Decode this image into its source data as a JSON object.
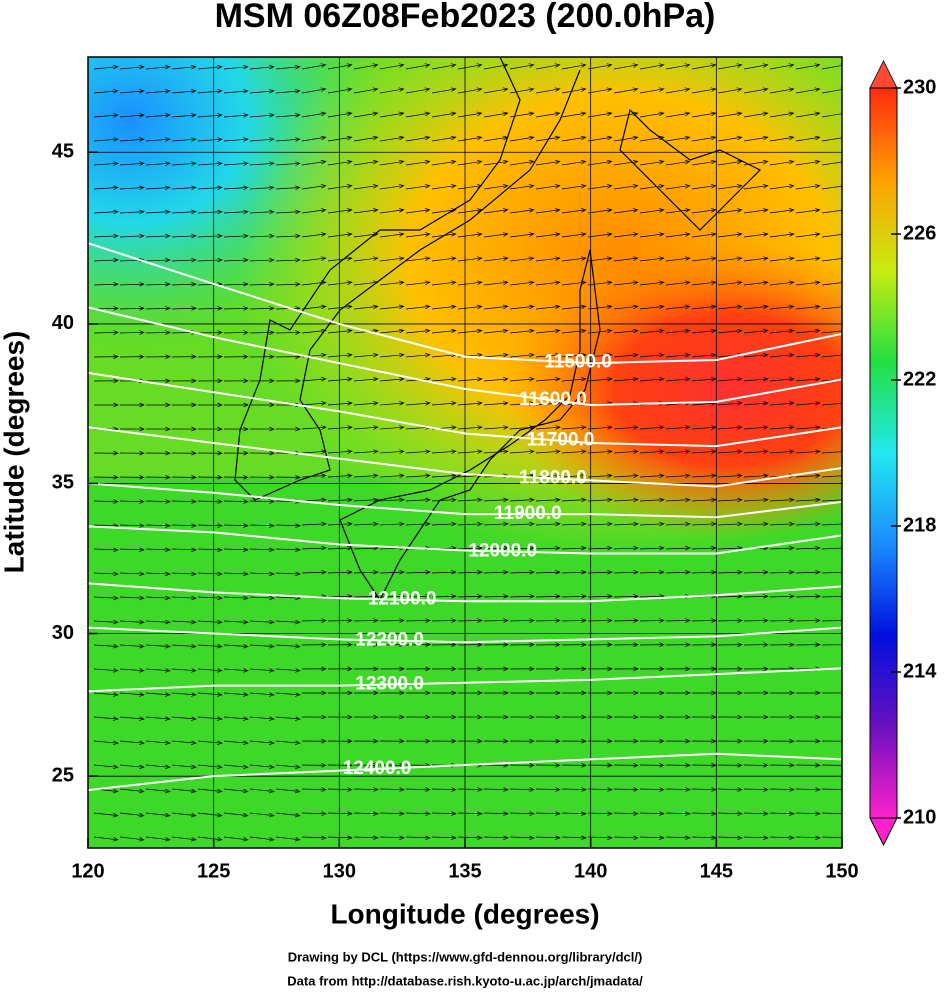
{
  "chart_data": {
    "type": "map",
    "title": "MSM 06Z08Feb2023 (200.0hPa)",
    "x_label": "Longitude (degrees)",
    "y_label": "Latitude  (degrees)",
    "projection": "mercator",
    "xlim": [
      120,
      150
    ],
    "ylim": [
      22.4,
      47.6
    ],
    "xticks": [
      120,
      125,
      130,
      135,
      140,
      145,
      150
    ],
    "yticks": [
      25,
      30,
      35,
      40,
      45
    ],
    "grid": true,
    "colorbar": {
      "lim": [
        210,
        230
      ],
      "ticks": [
        210,
        214,
        218,
        222,
        226,
        230
      ],
      "colors": [
        "#ff22cc",
        "#6a10c0",
        "#0010e0",
        "#1a8cff",
        "#22e8f0",
        "#22e040",
        "#c8ec10",
        "#ffa000",
        "#ff2a10"
      ]
    },
    "contour_lons": [
      120,
      125,
      130,
      135,
      140,
      145,
      150
    ],
    "contours": [
      {
        "level": {
          "value": 11500,
          "label": "11500.0"
        },
        "lats": [
          42.4,
          41.2,
          40.0,
          39.0,
          38.8,
          38.9,
          39.7
        ]
      },
      {
        "level": {
          "value": 11600,
          "label": "11600.0"
        },
        "lats": [
          40.5,
          39.6,
          38.8,
          38.0,
          37.5,
          37.6,
          38.3
        ]
      },
      {
        "level": {
          "value": 11700,
          "label": "11700.0"
        },
        "lats": [
          38.5,
          37.9,
          37.3,
          36.6,
          36.3,
          36.2,
          36.8
        ]
      },
      {
        "level": {
          "value": 11800,
          "label": "11800.0"
        },
        "lats": [
          36.8,
          36.3,
          35.8,
          35.3,
          35.1,
          34.9,
          35.5
        ]
      },
      {
        "level": {
          "value": 11900,
          "label": "11900.0"
        },
        "lats": [
          35.0,
          34.7,
          34.3,
          34.0,
          34.0,
          33.9,
          34.4
        ]
      },
      {
        "level": {
          "value": 12000,
          "label": "12000.0"
        },
        "lats": [
          33.6,
          33.4,
          33.0,
          32.8,
          32.7,
          32.7,
          33.3
        ]
      },
      {
        "level": {
          "value": 12100,
          "label": "12100.0"
        },
        "lats": [
          31.7,
          31.4,
          31.2,
          31.1,
          31.1,
          31.3,
          31.6
        ]
      },
      {
        "level": {
          "value": 12200,
          "label": "12200.0"
        },
        "lats": [
          30.2,
          30.0,
          29.8,
          29.7,
          29.8,
          29.9,
          30.2
        ]
      },
      {
        "level": {
          "value": 12300,
          "label": "12300.0"
        },
        "lats": [
          28.0,
          28.2,
          28.2,
          28.3,
          28.4,
          28.6,
          28.8
        ]
      },
      {
        "level": {
          "value": 12400,
          "label": "12400.0"
        },
        "lats": [
          24.5,
          25.0,
          25.2,
          25.4,
          25.6,
          25.8,
          25.6
        ]
      }
    ],
    "credits": [
      "Drawing by DCL (https://www.gfd-dennou.org/library/dcl/)",
      "Data from http://database.rish.kyoto-u.ac.jp/arch/jmadata/"
    ]
  }
}
